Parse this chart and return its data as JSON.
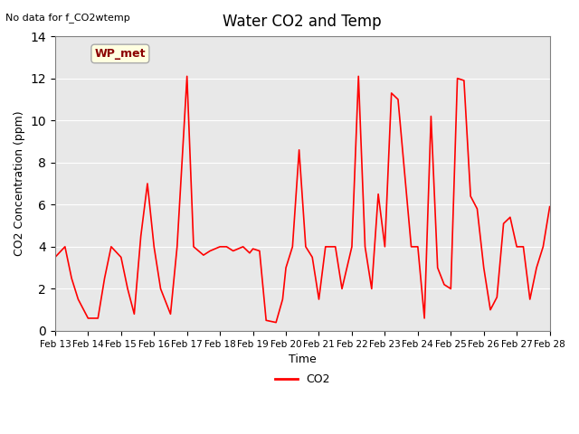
{
  "title": "Water CO2 and Temp",
  "subtitle": "No data for f_CO2wtemp",
  "ylabel": "CO2 Concentration (ppm)",
  "xlabel": "Time",
  "ylim": [
    0,
    14
  ],
  "bg_color": "#e8e8e8",
  "line_color": "#ff0000",
  "legend_label": "CO2",
  "wp_met_label": "WP_met",
  "xtick_labels": [
    "Feb 13",
    "Feb 14",
    "Feb 15",
    "Feb 16",
    "Feb 17",
    "Feb 18",
    "Feb 19",
    "Feb 20",
    "Feb 21",
    "Feb 22",
    "Feb 23",
    "Feb 24",
    "Feb 25",
    "Feb 26",
    "Feb 27",
    "Feb 28"
  ],
  "x": [
    0,
    0.3,
    0.5,
    0.7,
    1.0,
    1.3,
    1.5,
    1.7,
    2.0,
    2.2,
    2.4,
    2.6,
    2.8,
    3.0,
    3.2,
    3.5,
    3.7,
    4.0,
    4.2,
    4.5,
    4.7,
    5.0,
    5.2,
    5.4,
    5.7,
    5.9,
    6.0,
    6.2,
    6.4,
    6.7,
    6.9,
    7.0,
    7.2,
    7.4,
    7.6,
    7.8,
    8.0,
    8.2,
    8.5,
    8.7,
    9.0,
    9.2,
    9.4,
    9.6,
    9.8,
    10.0,
    10.2,
    10.4,
    10.6,
    10.8,
    11.0,
    11.2,
    11.4,
    11.6,
    11.8,
    12.0,
    12.2,
    12.4,
    12.6,
    12.8,
    13.0,
    13.2,
    13.4,
    13.6,
    13.8,
    14.0,
    14.2,
    14.4,
    14.6,
    14.8,
    15.0
  ],
  "y": [
    3.5,
    4.0,
    2.5,
    1.5,
    0.6,
    0.6,
    2.5,
    4.0,
    3.5,
    2.0,
    0.8,
    4.5,
    7.0,
    4.0,
    2.0,
    0.8,
    4.0,
    12.1,
    4.0,
    3.6,
    3.8,
    4.0,
    4.0,
    3.8,
    4.0,
    3.7,
    3.9,
    3.8,
    0.5,
    0.4,
    1.5,
    3.0,
    4.0,
    8.6,
    4.0,
    3.5,
    1.5,
    4.0,
    4.0,
    2.0,
    4.0,
    12.1,
    4.0,
    2.0,
    6.5,
    4.0,
    11.3,
    11.0,
    7.5,
    4.0,
    4.0,
    0.6,
    10.2,
    3.0,
    2.2,
    2.0,
    12.0,
    11.9,
    6.4,
    5.8,
    3.0,
    1.0,
    1.6,
    5.1,
    5.4,
    4.0,
    4.0,
    1.5,
    3.0,
    4.0,
    5.9
  ]
}
